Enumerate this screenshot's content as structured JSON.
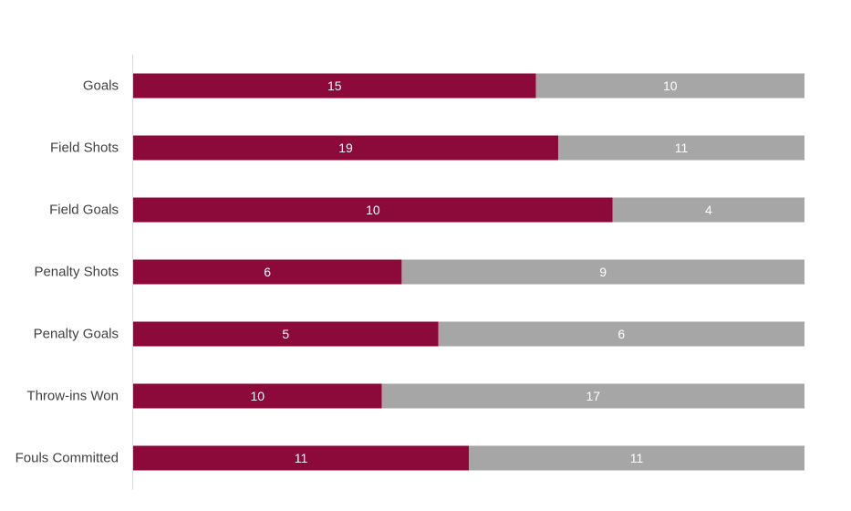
{
  "chart_data": {
    "type": "bar",
    "orientation": "horizontal",
    "stacking": "100%",
    "categories": [
      "Goals",
      "Field Shots",
      "Field Goals",
      "Penalty Shots",
      "Penalty Goals",
      "Throw-ins Won",
      "Fouls Committed"
    ],
    "series": [
      {
        "color": "#8B0A3A",
        "values": [
          15,
          19,
          10,
          6,
          5,
          10,
          11
        ]
      },
      {
        "color": "#A6A6A6",
        "values": [
          10,
          11,
          4,
          9,
          6,
          17,
          11
        ]
      }
    ],
    "title": "",
    "xlabel": "",
    "ylabel": "",
    "legend": "none",
    "grid": false,
    "data_labels": true
  }
}
